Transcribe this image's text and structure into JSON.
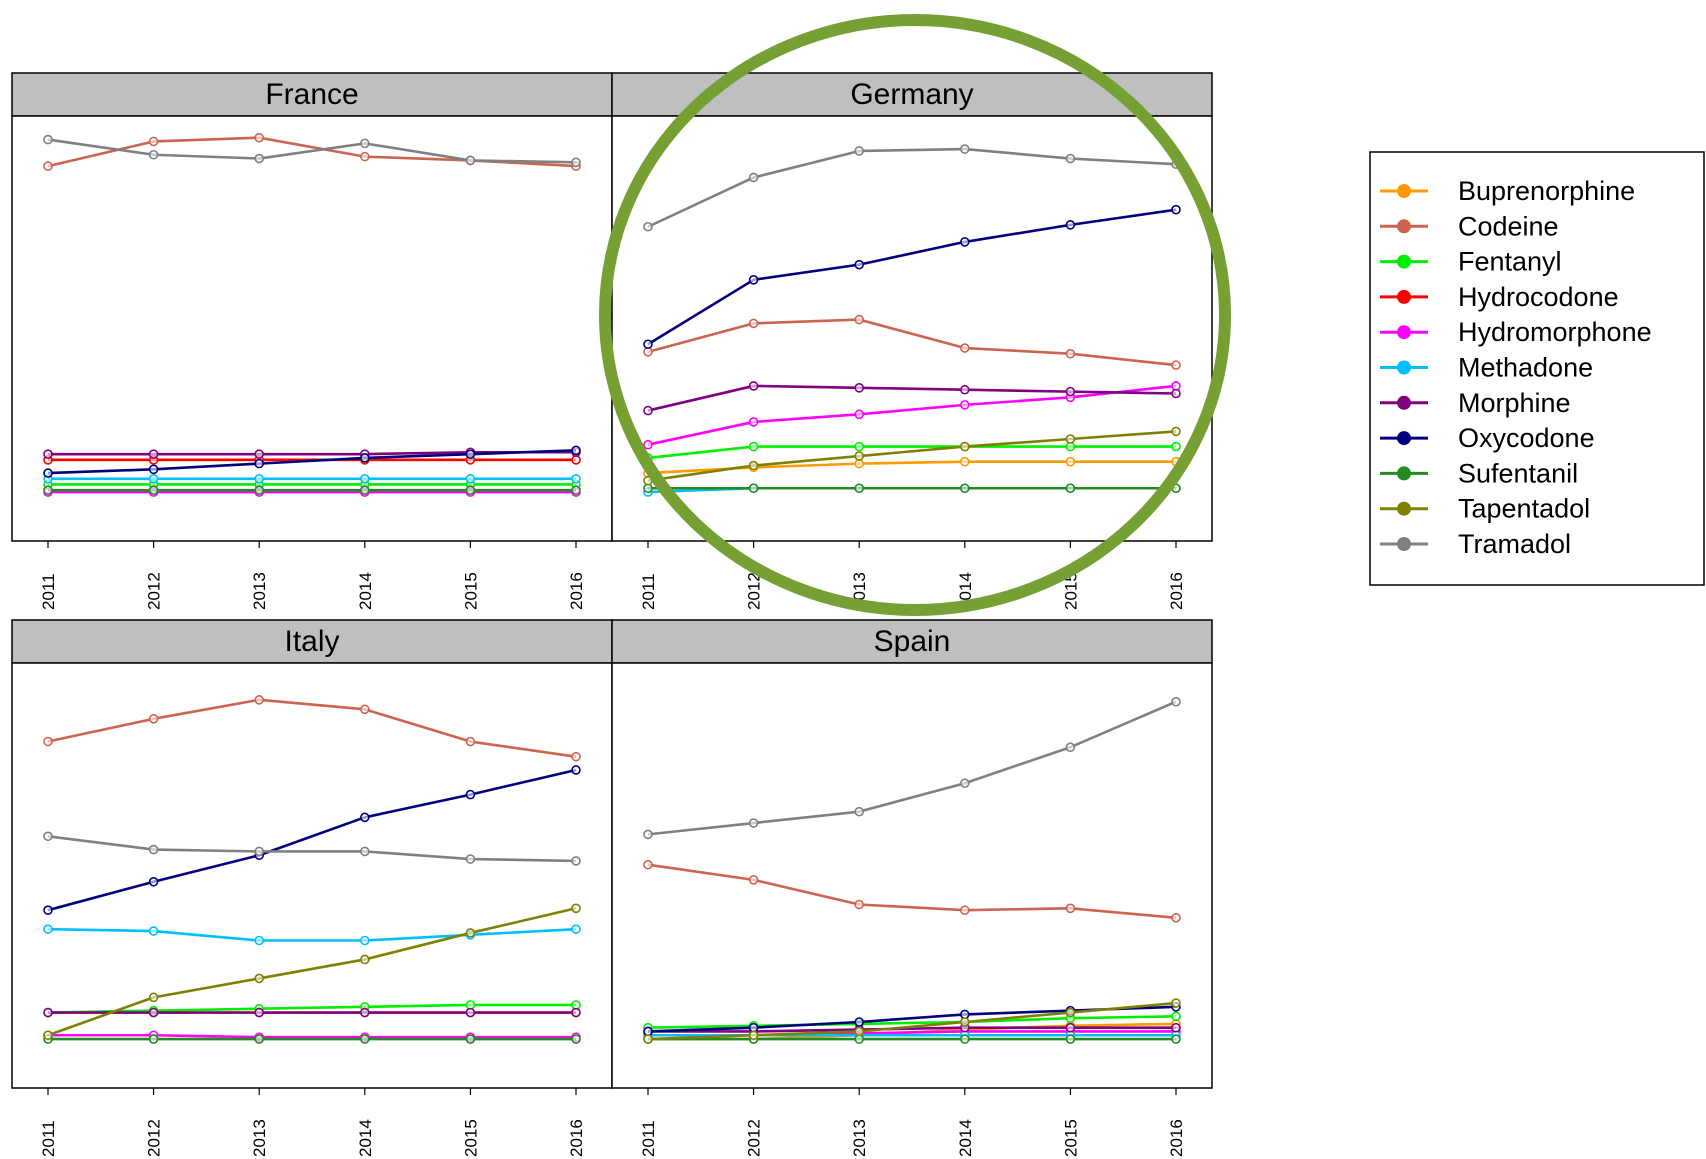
{
  "chart_data": {
    "type": "line",
    "x": [
      2011,
      2012,
      2013,
      2014,
      2015,
      2016
    ],
    "xtick_labels": [
      "2011",
      "2012",
      "2013",
      "2014",
      "2015",
      "2016"
    ],
    "grid": false,
    "legend_position": "right",
    "series_styles": [
      {
        "name": "Buprenorphine",
        "color": "#FF9900"
      },
      {
        "name": "Codeine",
        "color": "#CD6450"
      },
      {
        "name": "Fentanyl",
        "color": "#00EE00"
      },
      {
        "name": "Hydrocodone",
        "color": "#FF0000"
      },
      {
        "name": "Hydromorphone",
        "color": "#FF00FF"
      },
      {
        "name": "Methadone",
        "color": "#00BFFF"
      },
      {
        "name": "Morphine",
        "color": "#800080"
      },
      {
        "name": "Oxycodone",
        "color": "#000080"
      },
      {
        "name": "Sufentanil",
        "color": "#228B22"
      },
      {
        "name": "Tapentadol",
        "color": "#808000"
      },
      {
        "name": "Tramadol",
        "color": "#808080"
      }
    ],
    "panels": [
      {
        "title": "France",
        "ylim": [
          0,
          100
        ],
        "series": [
          {
            "name": "Buprenorphine",
            "values": [
              13.5,
              13.5,
              13.5,
              13.5,
              13.5,
              13.5
            ]
          },
          {
            "name": "Codeine",
            "values": [
              91,
              97.5,
              98.5,
              93.5,
              92.5,
              91
            ]
          },
          {
            "name": "Fentanyl",
            "values": [
              7,
              7,
              7,
              7,
              7,
              7
            ]
          },
          {
            "name": "Hydrocodone",
            "values": [
              13.5,
              13.5,
              13.5,
              13.5,
              13.5,
              13.5
            ]
          },
          {
            "name": "Hydromorphone",
            "values": [
              5,
              5,
              5,
              5,
              5,
              5
            ]
          },
          {
            "name": "Methadone",
            "values": [
              8.5,
              8.5,
              8.5,
              8.5,
              8.5,
              8.5
            ]
          },
          {
            "name": "Morphine",
            "values": [
              15,
              15,
              15,
              15,
              15.5,
              15.5
            ]
          },
          {
            "name": "Oxycodone",
            "values": [
              10,
              11,
              12.5,
              14,
              15,
              16
            ]
          },
          {
            "name": "Sufentanil",
            "values": [
              5.5,
              5.5,
              5.5,
              5.5,
              5.5,
              5.5
            ]
          },
          {
            "name": "Tapentadol",
            "values": [
              null,
              null,
              null,
              null,
              null,
              null
            ]
          },
          {
            "name": "Tramadol",
            "values": [
              98,
              94,
              93,
              97,
              92.5,
              92
            ]
          }
        ]
      },
      {
        "title": "Germany",
        "ylim": [
          0,
          100
        ],
        "series": [
          {
            "name": "Buprenorphine",
            "values": [
              10,
              11.5,
              12.5,
              13,
              13,
              13
            ]
          },
          {
            "name": "Codeine",
            "values": [
              42,
              49.5,
              50.5,
              43,
              41.5,
              38.5
            ]
          },
          {
            "name": "Fentanyl",
            "values": [
              14,
              17,
              17,
              17,
              17,
              17
            ]
          },
          {
            "name": "Hydrocodone",
            "values": [
              null,
              null,
              null,
              null,
              null,
              null
            ]
          },
          {
            "name": "Hydromorphone",
            "values": [
              17.5,
              23.5,
              25.5,
              28,
              30,
              33
            ]
          },
          {
            "name": "Methadone",
            "values": [
              5,
              6,
              6,
              6,
              6,
              6
            ]
          },
          {
            "name": "Morphine",
            "values": [
              26.5,
              33,
              32.5,
              32,
              31.5,
              31
            ]
          },
          {
            "name": "Oxycodone",
            "values": [
              44,
              61,
              65,
              71,
              75.5,
              79.5
            ]
          },
          {
            "name": "Sufentanil",
            "values": [
              6,
              6,
              6,
              6,
              6,
              6
            ]
          },
          {
            "name": "Tapentadol",
            "values": [
              8,
              12,
              14.5,
              17,
              19,
              21
            ]
          },
          {
            "name": "Tramadol",
            "values": [
              75,
              88,
              95,
              95.5,
              93,
              91.5
            ]
          }
        ]
      },
      {
        "title": "Italy",
        "ylim": [
          0,
          100
        ],
        "series": [
          {
            "name": "Buprenorphine",
            "values": [
              12,
              12,
              12,
              12,
              12,
              12
            ]
          },
          {
            "name": "Codeine",
            "values": [
              83.5,
              89.5,
              94.5,
              92,
              83.5,
              79.5
            ]
          },
          {
            "name": "Fentanyl",
            "values": [
              12,
              12.5,
              13,
              13.5,
              14,
              14
            ]
          },
          {
            "name": "Hydrocodone",
            "values": [
              null,
              null,
              null,
              null,
              null,
              null
            ]
          },
          {
            "name": "Hydromorphone",
            "values": [
              6,
              6,
              5.5,
              5.5,
              5.5,
              5.5
            ]
          },
          {
            "name": "Methadone",
            "values": [
              34,
              33.5,
              31,
              31,
              32.5,
              34
            ]
          },
          {
            "name": "Morphine",
            "values": [
              12,
              12,
              12,
              12,
              12,
              12
            ]
          },
          {
            "name": "Oxycodone",
            "values": [
              39,
              46.5,
              53.5,
              63.5,
              69.5,
              76
            ]
          },
          {
            "name": "Sufentanil",
            "values": [
              5,
              5,
              5,
              5,
              5,
              5
            ]
          },
          {
            "name": "Tapentadol",
            "values": [
              6,
              16,
              21,
              26,
              33,
              39.5
            ]
          },
          {
            "name": "Tramadol",
            "values": [
              58.5,
              55,
              54.5,
              54.5,
              52.5,
              52
            ]
          }
        ]
      },
      {
        "title": "Spain",
        "ylim": [
          0,
          100
        ],
        "series": [
          {
            "name": "Buprenorphine",
            "values": [
              5,
              5,
              6,
              7.5,
              8.5,
              9
            ]
          },
          {
            "name": "Codeine",
            "values": [
              51,
              47,
              40.5,
              39,
              39.5,
              37
            ]
          },
          {
            "name": "Fentanyl",
            "values": [
              8,
              8.5,
              9,
              9.5,
              10.5,
              11
            ]
          },
          {
            "name": "Hydrocodone",
            "values": [
              null,
              null,
              null,
              null,
              null,
              null
            ]
          },
          {
            "name": "Hydromorphone",
            "values": [
              6,
              6,
              6.5,
              7,
              7,
              7
            ]
          },
          {
            "name": "Methadone",
            "values": [
              6,
              6,
              6,
              6,
              6,
              6
            ]
          },
          {
            "name": "Morphine",
            "values": [
              7,
              7,
              7.5,
              8,
              8,
              8
            ]
          },
          {
            "name": "Oxycodone",
            "values": [
              7,
              8,
              9.5,
              11.5,
              12.5,
              13.5
            ]
          },
          {
            "name": "Sufentanil",
            "values": [
              5,
              5,
              5,
              5,
              5,
              5
            ]
          },
          {
            "name": "Tapentadol",
            "values": [
              5,
              6,
              7,
              9.5,
              12,
              14.5
            ]
          },
          {
            "name": "Tramadol",
            "values": [
              59,
              62,
              65,
              72.5,
              82,
              94
            ]
          }
        ]
      }
    ]
  },
  "annotation": {
    "shape": "circle",
    "color": "#76A034",
    "target": "Germany"
  }
}
